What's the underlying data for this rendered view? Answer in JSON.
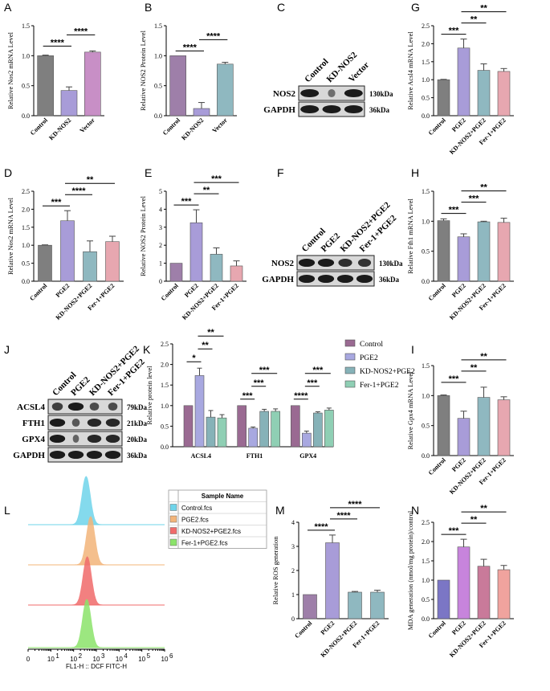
{
  "colors": {
    "control": "#7f7f7f",
    "ctrl_purple": "#9e7fa9",
    "vector": "#c88fc6",
    "pge2": "#a89cd8",
    "knd": "#8fb8c0",
    "fer": "#e7a7b0",
    "n_control": "#7b76c5",
    "n_pge2": "#c784dc",
    "n_knd": "#c97a9a",
    "n_fer": "#f0a39e",
    "k_control": "#9a6a92",
    "k_pge2": "#a8a8e0",
    "k_knd": "#86b2b8",
    "k_fer": "#8fcfb4",
    "cyan": "#6fd4ea",
    "orange": "#f3b57a",
    "red": "#f06b6b",
    "green": "#8be36a"
  },
  "chart_data": [
    {
      "id": "A",
      "type": "bar",
      "ylabel": "Relative Nos2 mRNA Level",
      "ylim": [
        0,
        1.5
      ],
      "yticks": [
        "0.0",
        "0.5",
        "1.0",
        "1.5"
      ],
      "categories": [
        "Control",
        "KD-NOS2",
        "Vector"
      ],
      "values": [
        1.0,
        0.42,
        1.06
      ],
      "errors": [
        0.01,
        0.06,
        0.02
      ],
      "significance": [
        {
          "from": 0,
          "to": 1,
          "label": "****"
        },
        {
          "from": 1,
          "to": 2,
          "label": "****"
        }
      ]
    },
    {
      "id": "B",
      "type": "bar",
      "ylabel": "Relative NOS2 Protein Level",
      "ylim": [
        0,
        1.5
      ],
      "yticks": [
        "0.0",
        "0.5",
        "1.0",
        "1.5"
      ],
      "categories": [
        "Control",
        "KD-NOS2",
        "Vector"
      ],
      "values": [
        1.0,
        0.12,
        0.86
      ],
      "errors": [
        0.0,
        0.1,
        0.03
      ],
      "significance": [
        {
          "from": 0,
          "to": 1,
          "label": "****"
        },
        {
          "from": 1,
          "to": 2,
          "label": "****"
        }
      ]
    },
    {
      "id": "G",
      "type": "bar",
      "ylabel": "Relative Acsl4 mRNA Level",
      "ylim": [
        0,
        2.5
      ],
      "yticks": [
        "0.0",
        "0.5",
        "1.0",
        "1.5",
        "2.0",
        "2.5"
      ],
      "categories": [
        "Control",
        "PGE2",
        "KD-NOS2+PGE2",
        "Fer-1+PGE2"
      ],
      "values": [
        1.0,
        1.88,
        1.26,
        1.23
      ],
      "errors": [
        0.01,
        0.25,
        0.18,
        0.08
      ],
      "significance": [
        {
          "from": 0,
          "to": 1,
          "label": "***"
        },
        {
          "from": 1,
          "to": 2,
          "label": "**"
        },
        {
          "from": 1,
          "to": 3,
          "label": "**"
        }
      ]
    },
    {
      "id": "D",
      "type": "bar",
      "ylabel": "Relative Nos2 mRNA Level",
      "ylim": [
        0,
        2.5
      ],
      "yticks": [
        "0.0",
        "0.5",
        "1.0",
        "1.5",
        "2.0",
        "2.5"
      ],
      "categories": [
        "Control",
        "PGE2",
        "KD-NOS2+PGE2",
        "Fer-1+PGE2"
      ],
      "values": [
        1.0,
        1.68,
        0.82,
        1.1
      ],
      "errors": [
        0.01,
        0.28,
        0.3,
        0.15
      ],
      "significance": [
        {
          "from": 0,
          "to": 1,
          "label": "***"
        },
        {
          "from": 1,
          "to": 2,
          "label": "****"
        },
        {
          "from": 1,
          "to": 3,
          "label": "**"
        }
      ]
    },
    {
      "id": "E",
      "type": "bar",
      "ylabel": "Relative NOS2 Protein Level",
      "ylim": [
        0,
        5
      ],
      "yticks": [
        "0",
        "1",
        "2",
        "3",
        "4",
        "5"
      ],
      "categories": [
        "Control",
        "PGE2",
        "KD-NOS2+PGE2",
        "Fer-1+PGE2"
      ],
      "values": [
        1.0,
        3.25,
        1.5,
        0.85
      ],
      "errors": [
        0.0,
        0.72,
        0.35,
        0.28
      ],
      "significance": [
        {
          "from": 0,
          "to": 1,
          "label": "***"
        },
        {
          "from": 1,
          "to": 2,
          "label": "**"
        },
        {
          "from": 1,
          "to": 3,
          "label": "***"
        }
      ]
    },
    {
      "id": "H",
      "type": "bar",
      "ylabel": "Relative Fth1 mRNA Level",
      "ylim": [
        0,
        1.5
      ],
      "yticks": [
        "0.0",
        "0.5",
        "1.0",
        "1.5"
      ],
      "categories": [
        "Control",
        "PGE2",
        "KD-NOS2+PGE2",
        "Fer-1+PGE2"
      ],
      "values": [
        1.01,
        0.74,
        0.99,
        0.98
      ],
      "errors": [
        0.03,
        0.05,
        0.01,
        0.07
      ],
      "significance": [
        {
          "from": 0,
          "to": 1,
          "label": "***"
        },
        {
          "from": 1,
          "to": 2,
          "label": "***"
        },
        {
          "from": 1,
          "to": 3,
          "label": "**"
        }
      ]
    },
    {
      "id": "K",
      "type": "bar",
      "ylabel": "Relative protein level",
      "ylim": [
        0,
        2.5
      ],
      "yticks": [
        "0.0",
        "0.5",
        "1.0",
        "1.5",
        "2.0",
        "2.5"
      ],
      "categories": [
        "ACSL4",
        "FTH1",
        "GPX4"
      ],
      "series": [
        {
          "name": "Control",
          "values": [
            1.0,
            1.0,
            1.0
          ],
          "errors": [
            0,
            0,
            0
          ]
        },
        {
          "name": "PGE2",
          "values": [
            1.73,
            0.45,
            0.33
          ],
          "errors": [
            0.18,
            0.03,
            0.05
          ]
        },
        {
          "name": "KD-NOS2+PGE2",
          "values": [
            0.72,
            0.86,
            0.82
          ],
          "errors": [
            0.16,
            0.05,
            0.03
          ]
        },
        {
          "name": "Fer-1+PGE2",
          "values": [
            0.7,
            0.86,
            0.89
          ],
          "errors": [
            0.08,
            0.06,
            0.05
          ]
        }
      ],
      "significance": [
        {
          "group": 0,
          "from": 0,
          "to": 1,
          "label": "*"
        },
        {
          "group": 0,
          "from": 1,
          "to": 2,
          "label": "**"
        },
        {
          "group": 0,
          "from": 1,
          "to": 3,
          "label": "**"
        },
        {
          "group": 1,
          "from": 0,
          "to": 1,
          "label": "***"
        },
        {
          "group": 1,
          "from": 1,
          "to": 2,
          "label": "***"
        },
        {
          "group": 1,
          "from": 1,
          "to": 3,
          "label": "***"
        },
        {
          "group": 2,
          "from": 0,
          "to": 1,
          "label": "****"
        },
        {
          "group": 2,
          "from": 1,
          "to": 2,
          "label": "***"
        },
        {
          "group": 2,
          "from": 1,
          "to": 3,
          "label": "***"
        }
      ],
      "legend": [
        "Control",
        "PGE2",
        "KD-NOS2+PGE2",
        "Fer-1+PGE2"
      ]
    },
    {
      "id": "I",
      "type": "bar",
      "ylabel": "Relative Gpx4 mRNA Level",
      "ylim": [
        0,
        1.5
      ],
      "yticks": [
        "0.0",
        "0.5",
        "1.0",
        "1.5"
      ],
      "categories": [
        "Control",
        "PGE2",
        "KD-NOS2+PGE2",
        "Fer-1+PGE2"
      ],
      "values": [
        1.0,
        0.62,
        0.97,
        0.93
      ],
      "errors": [
        0.01,
        0.12,
        0.17,
        0.05
      ],
      "significance": [
        {
          "from": 0,
          "to": 1,
          "label": "***"
        },
        {
          "from": 1,
          "to": 2,
          "label": "**"
        },
        {
          "from": 1,
          "to": 3,
          "label": "**"
        }
      ]
    },
    {
      "id": "M",
      "type": "bar",
      "ylabel": "Relative ROS generation",
      "ylim": [
        0,
        4
      ],
      "yticks": [
        "0",
        "1",
        "2",
        "3",
        "4"
      ],
      "categories": [
        "Control",
        "PGE2",
        "KD-NOS2+PGE2",
        "Fer-1+PGE2"
      ],
      "values": [
        1.0,
        3.15,
        1.1,
        1.1
      ],
      "errors": [
        0.0,
        0.32,
        0.03,
        0.08
      ],
      "significance": [
        {
          "from": 0,
          "to": 1,
          "label": "****"
        },
        {
          "from": 1,
          "to": 2,
          "label": "****"
        },
        {
          "from": 1,
          "to": 3,
          "label": "****"
        }
      ]
    },
    {
      "id": "N",
      "type": "bar",
      "ylabel": "MDA generation (nmol/mg protein)/control",
      "ylim": [
        0,
        2.5
      ],
      "yticks": [
        "0.0",
        "0.5",
        "1.0",
        "1.5",
        "2.0",
        "2.5"
      ],
      "categories": [
        "Control",
        "PGE2",
        "KD-NOS2+PGE2",
        "Fer-1+PGE2"
      ],
      "values": [
        1.0,
        1.86,
        1.36,
        1.27
      ],
      "errors": [
        0.0,
        0.2,
        0.18,
        0.11
      ],
      "significance": [
        {
          "from": 0,
          "to": 1,
          "label": "***"
        },
        {
          "from": 1,
          "to": 2,
          "label": "**"
        },
        {
          "from": 1,
          "to": 3,
          "label": "**"
        }
      ]
    }
  ],
  "blots": {
    "C": {
      "lanes": [
        "Control",
        "KD-NOS2",
        "Vector"
      ],
      "rows": [
        {
          "name": "NOS2",
          "kda": "130kDa"
        },
        {
          "name": "GAPDH",
          "kda": "36kDa"
        }
      ]
    },
    "F": {
      "lanes": [
        "Control",
        "PGE2",
        "KD-NOS2+PGE2",
        "Fer-1+PGE2"
      ],
      "rows": [
        {
          "name": "NOS2",
          "kda": "130kDa"
        },
        {
          "name": "GAPDH",
          "kda": "36kDa"
        }
      ]
    },
    "J": {
      "lanes": [
        "Control",
        "PGE2",
        "KD-NOS2+PGE2",
        "Fer-1+PGE2"
      ],
      "rows": [
        {
          "name": "ACSL4",
          "kda": "79kDa"
        },
        {
          "name": "FTH1",
          "kda": "21kDa"
        },
        {
          "name": "GPX4",
          "kda": "20kDa"
        },
        {
          "name": "GAPDH",
          "kda": "36kDa"
        }
      ]
    }
  },
  "flow": {
    "legend_header": "Sample Name",
    "samples": [
      "Control.fcs",
      "PGE2.fcs",
      "KD-NOS2+PGE2.fcs",
      "Fer-1+PGE2.fcs"
    ],
    "xlabel": "FL1-H :: DCF FITC-H",
    "ticks": [
      "0",
      "10",
      "10",
      "10",
      "10",
      "10",
      "10"
    ],
    "exponents": [
      "",
      "1",
      "2",
      "3",
      "4",
      "5",
      "6"
    ],
    "tick_values": [
      0,
      1,
      2,
      3,
      4,
      5,
      6
    ]
  },
  "panel_labels": [
    "A",
    "B",
    "C",
    "G",
    "D",
    "E",
    "F",
    "H",
    "J",
    "K",
    "I",
    "L",
    "M",
    "N"
  ]
}
